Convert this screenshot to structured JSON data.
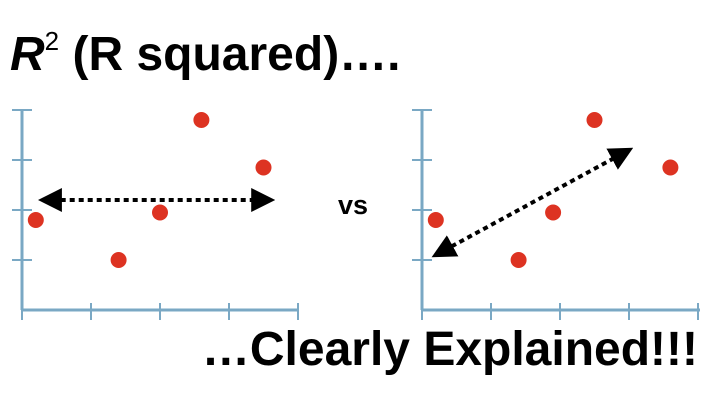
{
  "title": {
    "r": "R",
    "superscript": "2",
    "rest": " (R squared)…."
  },
  "subtitle": "…Clearly Explained!!!",
  "vs_label": "vs",
  "colors": {
    "point": "#dd3322",
    "axis": "#7aa8c4",
    "arrow": "#000000"
  },
  "chart_data": [
    {
      "type": "scatter",
      "points": [
        {
          "x": 0.2,
          "y": 1.8
        },
        {
          "x": 1.4,
          "y": 1.0
        },
        {
          "x": 2.0,
          "y": 1.95
        },
        {
          "x": 2.6,
          "y": 3.8
        },
        {
          "x": 3.5,
          "y": 2.85
        }
      ],
      "arrow": {
        "from": [
          0.3,
          2.2
        ],
        "to": [
          3.6,
          2.2
        ],
        "double_headed": true,
        "style": "dotted"
      }
    },
    {
      "type": "scatter",
      "points": [
        {
          "x": 0.2,
          "y": 1.8
        },
        {
          "x": 1.4,
          "y": 1.0
        },
        {
          "x": 1.9,
          "y": 1.95
        },
        {
          "x": 2.5,
          "y": 3.8
        },
        {
          "x": 3.6,
          "y": 2.85
        }
      ],
      "arrow": {
        "from": [
          0.2,
          1.1
        ],
        "to": [
          3.0,
          3.2
        ],
        "double_headed": true,
        "style": "dotted"
      }
    }
  ]
}
